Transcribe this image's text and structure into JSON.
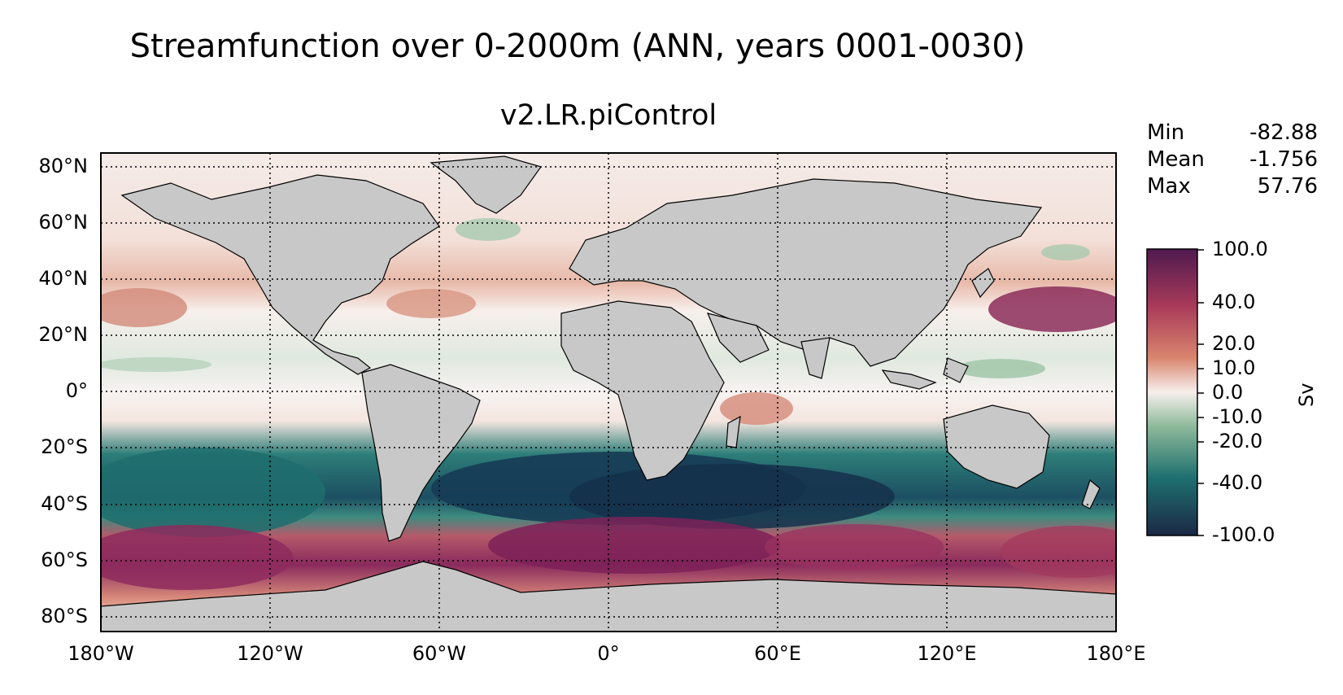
{
  "suptitle": "Streamfunction over 0-2000m (ANN, years 0001-0030)",
  "subtitle": "v2.LR.piControl",
  "stats": [
    {
      "label": "Min",
      "value": "-82.88"
    },
    {
      "label": "Mean",
      "value": "-1.756"
    },
    {
      "label": "Max",
      "value": "57.76"
    }
  ],
  "lat_ticks": [
    "80°N",
    "60°N",
    "40°N",
    "20°N",
    "0°",
    "20°S",
    "40°S",
    "60°S",
    "80°S"
  ],
  "lon_ticks": [
    "180°W",
    "120°W",
    "60°W",
    "0°",
    "60°E",
    "120°E",
    "180°E"
  ],
  "colorbar": {
    "ticks": [
      "100.0",
      "40.0",
      "20.0",
      "10.0",
      "0.0",
      "-10.0",
      "-20.0",
      "-40.0",
      "-100.0"
    ],
    "unit": "Sv",
    "colors": [
      "#1b2845",
      "#1e6f6f",
      "#8db99a",
      "#f6efec",
      "#d9856e",
      "#a93a5a",
      "#4f1a4f"
    ]
  },
  "map": {
    "land_color": "#c8c8c8",
    "gridlines": "dotted",
    "extent": {
      "lon": [
        -180,
        180
      ],
      "lat": [
        -85,
        85
      ]
    }
  }
}
